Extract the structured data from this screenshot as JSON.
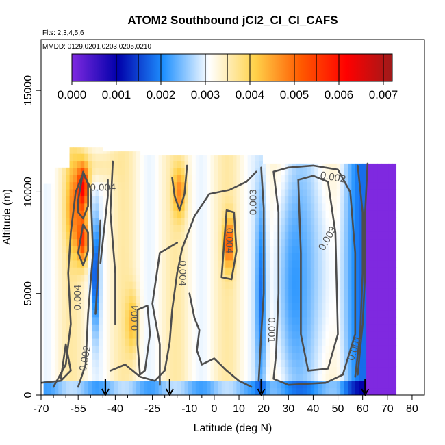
{
  "chart_data": {
    "type": "heatmap",
    "title": "ATOM2 Southbound jCl2_Cl_Cl_CAFS",
    "annotations": {
      "flights": "Flts: 2,3,4,5,6",
      "dates": "MMDD: 0129,0201,0203,0205,0210"
    },
    "xlabel": "Latitude (deg N)",
    "ylabel": "Altitude (m)",
    "xlim": [
      -70,
      85
    ],
    "ylim": [
      0,
      17500
    ],
    "x_ticks": [
      -70,
      -55,
      -40,
      -25,
      -10,
      0,
      10,
      20,
      30,
      40,
      50,
      60,
      70,
      80
    ],
    "y_ticks": [
      0,
      5000,
      10000,
      15000
    ],
    "colorbar": {
      "min": 0.0,
      "max": 0.0072,
      "ticks": [
        0.0,
        0.001,
        0.002,
        0.003,
        0.004,
        0.005,
        0.006,
        0.007
      ],
      "tick_labels": [
        "0.000",
        "0.001",
        "0.002",
        "0.003",
        "0.004",
        "0.005",
        "0.006",
        "0.007"
      ],
      "colors": [
        "#7f29e0",
        "#0000aa",
        "#1e90ff",
        "#ffffff",
        "#ffd24a",
        "#ff5a00",
        "#ff0000",
        "#9e1a1a"
      ]
    },
    "contour_levels": [
      0.001,
      0.002,
      0.003,
      0.004,
      0.005
    ],
    "contour_labels": [
      {
        "text": "0.004",
        "x": -45,
        "y": 10200,
        "rotate": 0
      },
      {
        "text": "0.002",
        "x": 48,
        "y": 10700,
        "rotate": 10
      },
      {
        "text": "0.003",
        "x": 16,
        "y": 9500,
        "rotate": -90
      },
      {
        "text": "0.004",
        "x": 6,
        "y": 7600,
        "rotate": 90
      },
      {
        "text": "0.004",
        "x": -13,
        "y": 6000,
        "rotate": 90
      },
      {
        "text": "0.003",
        "x": 46,
        "y": 7700,
        "rotate": -60
      },
      {
        "text": "0.004",
        "x": -32,
        "y": 3800,
        "rotate": -90
      },
      {
        "text": "0.004",
        "x": -55,
        "y": 4800,
        "rotate": -90
      },
      {
        "text": "0.002",
        "x": -52,
        "y": 1800,
        "rotate": -80
      },
      {
        "text": "0.001",
        "x": 23,
        "y": 3200,
        "rotate": 90
      },
      {
        "text": "0.001",
        "x": 57,
        "y": 2300,
        "rotate": -70
      }
    ],
    "profile_markers_lat": [
      -44,
      -18,
      19,
      61
    ],
    "grid": false
  }
}
